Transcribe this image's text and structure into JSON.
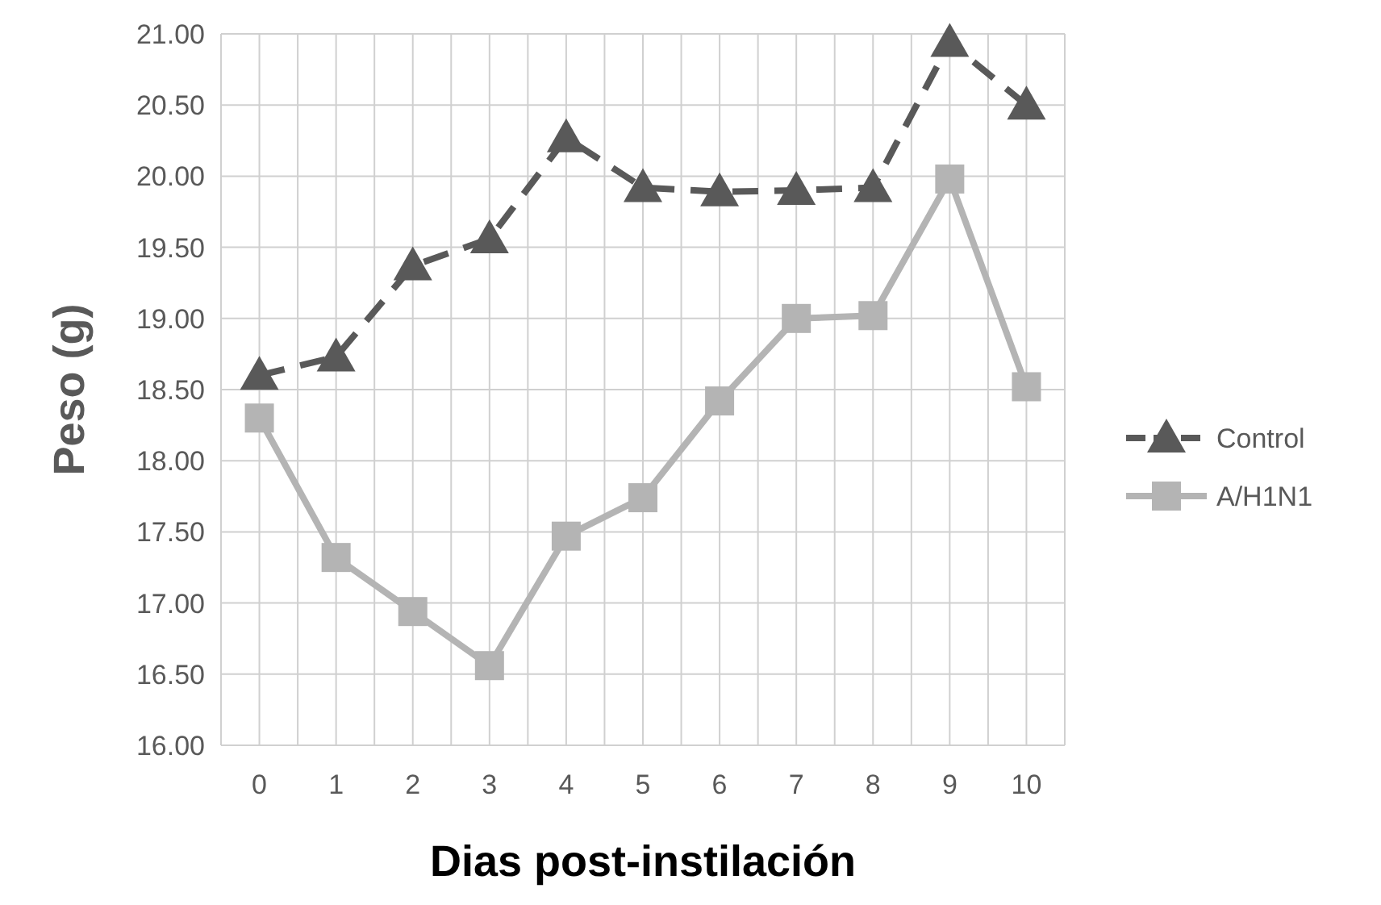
{
  "chart_data": {
    "type": "line",
    "xlabel": "Dias post-instilación",
    "ylabel": "Peso (g)",
    "categories": [
      "0",
      "1",
      "2",
      "3",
      "4",
      "5",
      "6",
      "7",
      "8",
      "9",
      "10"
    ],
    "series": [
      {
        "name": "Control",
        "color": "#595959",
        "marker": "triangle",
        "line_style": "dashed",
        "values": [
          18.6,
          18.73,
          19.37,
          19.56,
          20.27,
          19.92,
          19.89,
          19.9,
          19.92,
          20.94,
          20.5
        ]
      },
      {
        "name": "A/H1N1",
        "color": "#b4b4b4",
        "marker": "square",
        "line_style": "solid",
        "values": [
          18.3,
          17.32,
          16.94,
          16.56,
          17.47,
          17.74,
          18.42,
          19.0,
          19.02,
          19.98,
          18.52
        ]
      }
    ],
    "ylim": [
      16,
      21
    ],
    "yticks": [
      {
        "value": 16,
        "label": "16.00"
      },
      {
        "value": 16.5,
        "label": "16.50"
      },
      {
        "value": 17,
        "label": "17.00"
      },
      {
        "value": 17.5,
        "label": "17.50"
      },
      {
        "value": 18,
        "label": "18.00"
      },
      {
        "value": 18.5,
        "label": "18.50"
      },
      {
        "value": 19,
        "label": "19.00"
      },
      {
        "value": 19.5,
        "label": "19.50"
      },
      {
        "value": 20,
        "label": "20.00"
      },
      {
        "value": 20.5,
        "label": "20.50"
      },
      {
        "value": 21,
        "label": "21.00"
      }
    ],
    "grid": true,
    "legend": "right"
  }
}
